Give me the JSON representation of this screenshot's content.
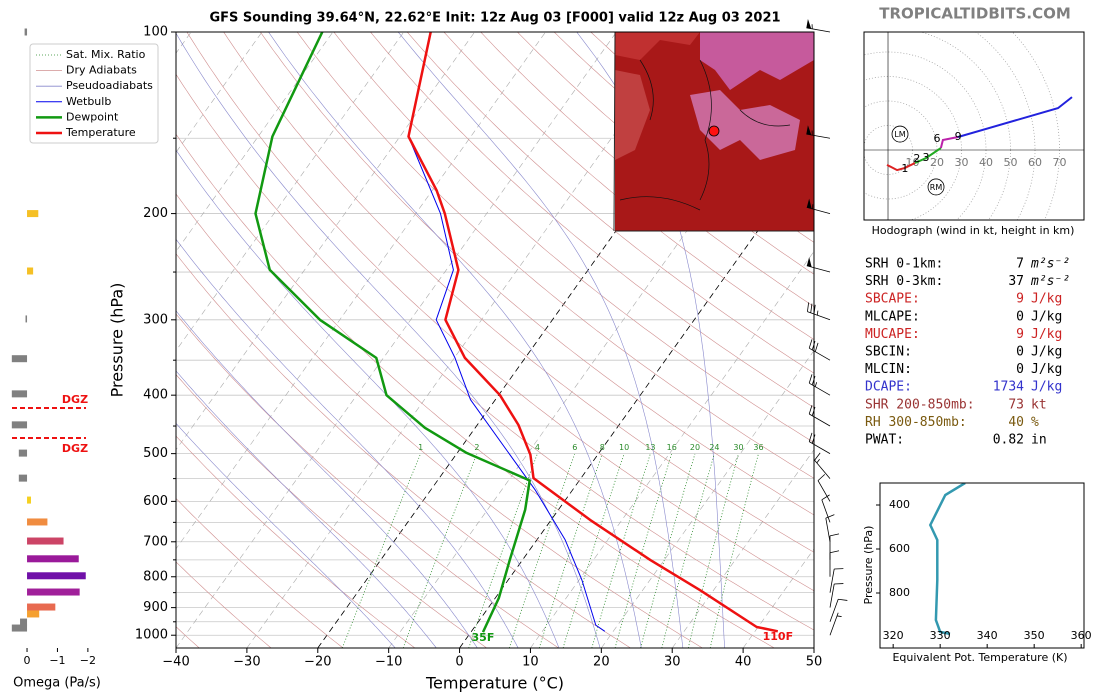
{
  "header": {
    "watermark": "TROPICALTIDBITS.COM"
  },
  "stats": {
    "rows": [
      {
        "label": "SRH 0-1km:",
        "value": "7",
        "unit": "m²s⁻²",
        "color": "#000000"
      },
      {
        "label": "SRH 0-3km:",
        "value": "37",
        "unit": "m²s⁻²",
        "color": "#000000"
      },
      {
        "label": "SBCAPE:",
        "value": "9",
        "unit": "J/kg",
        "color": "#cc2222"
      },
      {
        "label": "MLCAPE:",
        "value": "0",
        "unit": "J/kg",
        "color": "#000000"
      },
      {
        "label": "MUCAPE:",
        "value": "9",
        "unit": "J/kg",
        "color": "#cc2222"
      },
      {
        "label": "SBCIN:",
        "value": "0",
        "unit": "J/kg",
        "color": "#000000"
      },
      {
        "label": "MLCIN:",
        "value": "0",
        "unit": "J/kg",
        "color": "#000000"
      },
      {
        "label": "DCAPE:",
        "value": "1734",
        "unit": "J/kg",
        "color": "#3333cc"
      },
      {
        "label": "SHR 200-850mb:",
        "value": "73",
        "unit": "kt",
        "color": "#993333"
      },
      {
        "label": "RH 300-850mb:",
        "value": "40",
        "unit": "%",
        "color": "#7a5a10"
      },
      {
        "label": "PWAT:",
        "value": "0.82",
        "unit": "in",
        "color": "#000000"
      }
    ]
  },
  "chart_data": [
    {
      "type": "skewt",
      "title": "GFS Sounding 39.64°N, 22.62°E Init: 12z Aug 03 [F000] valid 12z Aug 03 2021",
      "xlabel": "Temperature (°C)",
      "ylabel": "Pressure (hPa)",
      "xlim": [
        -40,
        50
      ],
      "ylim": [
        1050,
        100
      ],
      "log_y": true,
      "grid": true,
      "legend": "upper left",
      "xticks": [
        {
          "value": -40,
          "label": "−40"
        },
        {
          "value": -30,
          "label": "−30"
        },
        {
          "value": -20,
          "label": "−20"
        },
        {
          "value": -10,
          "label": "−10"
        },
        0,
        10,
        20,
        30,
        40,
        50
      ],
      "yticks": [
        100,
        200,
        300,
        400,
        500,
        600,
        700,
        800,
        900,
        1000
      ],
      "yticks_minor": [
        150,
        250,
        350,
        450,
        550,
        650,
        750,
        850,
        950
      ],
      "highlight_isotherms": [
        0,
        -20
      ],
      "reference_lines": [
        {
          "name": "Sat. Mix. Ratio",
          "color": "#2a8a2a",
          "line_width": 0.8,
          "dash": "1 2",
          "top_pressure": 500,
          "mixing_ratios": [
            1,
            2,
            4,
            6,
            8,
            10,
            13,
            16,
            20,
            24,
            30,
            36
          ]
        },
        {
          "name": "Dry Adiabats",
          "color": "#d09090",
          "line_width": 0.6,
          "theta": [
            -40,
            -30,
            -20,
            -10,
            0,
            10,
            20,
            30,
            40,
            50,
            60,
            70,
            80,
            90,
            100,
            110,
            120,
            130,
            140,
            150,
            160,
            170,
            180,
            190,
            200
          ]
        },
        {
          "name": "Pseudoadiabats",
          "color": "#8888cc",
          "line_width": 0.6,
          "t1000": [
            -12,
            -6,
            0,
            6,
            12,
            18,
            24,
            30,
            36
          ]
        }
      ],
      "series": [
        {
          "name": "Wetbulb",
          "color": "#0000ee",
          "line_width": 1,
          "pressure": [
            100,
            149,
            200,
            248,
            300,
            347,
            407,
            502,
            574,
            695,
            810,
            962,
            985
          ],
          "values": [
            -66.2,
            -58.8,
            -46.5,
            -39.0,
            -36.4,
            -29.9,
            -23.5,
            -12.4,
            -5.3,
            4.0,
            10.4,
            16.9,
            18.8
          ]
        },
        {
          "name": "Dewpoint",
          "color": "#119911",
          "line_width": 2.5,
          "pressure": [
            100,
            149,
            200,
            248,
            300,
            347,
            400,
            453,
            498,
            554,
            619,
            750,
            868,
            988
          ],
          "values": [
            -81.5,
            -78,
            -72.6,
            -64.9,
            -52.8,
            -41,
            -35.8,
            -27.1,
            -18.8,
            -7,
            -4.7,
            -1.8,
            0.5,
            1.7
          ]
        },
        {
          "name": "Temperature",
          "color": "#ee1111",
          "line_width": 2.5,
          "pressure": [
            100,
            149,
            183,
            200,
            248,
            300,
            347,
            400,
            448,
            502,
            549,
            644,
            750,
            842,
            969,
            985
          ],
          "values": [
            -66.2,
            -58.8,
            -49.4,
            -45.9,
            -38.3,
            -35.1,
            -28.5,
            -19.8,
            -14.2,
            -9.5,
            -6.7,
            5.5,
            18,
            28.1,
            39.8,
            43.2
          ]
        }
      ],
      "annotations": [
        {
          "text": "35F",
          "color": "#119911",
          "temperature": 2.3,
          "pressure": 1011
        },
        {
          "text": "110F",
          "color": "#ee1111",
          "temperature": 43.8,
          "pressure": 1007
        }
      ],
      "barbs": {
        "pressure": [
          100,
          150,
          200,
          250,
          300,
          350,
          400,
          450,
          500,
          550,
          600,
          650,
          700,
          750,
          800,
          850,
          900,
          950,
          1000
        ],
        "speed": [
          55,
          55,
          55,
          50,
          35,
          30,
          25,
          20,
          20,
          15,
          10,
          10,
          10,
          10,
          10,
          10,
          10,
          10,
          5
        ],
        "direction": [
          280,
          280,
          285,
          285,
          290,
          300,
          300,
          300,
          300,
          320,
          330,
          340,
          350,
          0,
          0,
          10,
          10,
          20,
          20
        ]
      }
    },
    {
      "type": "omega",
      "xlabel": "Omega (Pa/s)",
      "xlim": [
        0.56,
        -2.3
      ],
      "xticks": [
        0,
        {
          "value": -1,
          "label": "−1"
        },
        {
          "value": -2,
          "label": "−2"
        }
      ],
      "pressure": [
        100,
        200,
        249,
        299,
        348,
        398,
        448,
        499,
        549,
        597,
        649,
        698,
        747,
        797,
        848,
        898,
        922,
        951,
        973
      ],
      "values": [
        0.08,
        -0.37,
        -0.2,
        0.05,
        0.5,
        0.5,
        0.5,
        0.27,
        0.27,
        -0.13,
        -0.67,
        -1.2,
        -1.7,
        -1.93,
        -1.73,
        -0.93,
        -0.4,
        0.23,
        0.5
      ],
      "colors": [
        "#808080",
        "#f5c025",
        "#f5c025",
        "#808080",
        "#808080",
        "#808080",
        "#808080",
        "#808080",
        "#808080",
        "#f5d020",
        "#f08c40",
        "#cc4466",
        "#9a1a9a",
        "#7010a8",
        "#a0209a",
        "#e86a50",
        "#f5a030",
        "#808080",
        "#808080"
      ],
      "dgz": {
        "label": "DGZ",
        "color": "#ee1111",
        "pressure": [
          420,
          471
        ]
      }
    },
    {
      "type": "hodograph",
      "caption": "Hodograph (wind in kt, height in km)",
      "xlim": [
        -9.8,
        80
      ],
      "ylim": [
        -28.6,
        48.2
      ],
      "rings": [
        10,
        20,
        30,
        40,
        50,
        60,
        70
      ],
      "series": [
        {
          "color": "#dd2222",
          "u": [
            -0.4,
            3.7,
            6.9,
            11
          ],
          "v": [
            -6.1,
            -8.2,
            -7.3,
            -5.3
          ]
        },
        {
          "color": "#22aa22",
          "u": [
            11,
            15.5,
            21.6
          ],
          "v": [
            -5.3,
            -3.3,
            0.8
          ]
        },
        {
          "color": "#bb22aa",
          "u": [
            21.6,
            22.4,
            28.6
          ],
          "v": [
            0.8,
            4.1,
            5.3
          ]
        },
        {
          "color": "#2222dd",
          "u": [
            28.6,
            69.4,
            75.1
          ],
          "v": [
            5.3,
            17.1,
            21.6
          ]
        }
      ],
      "height_labels": [
        {
          "text": "1",
          "u": 6.9,
          "v": -7.8
        },
        {
          "text": "2",
          "u": 11.8,
          "v": -3.7
        },
        {
          "text": "3",
          "u": 15.5,
          "v": -3.3
        },
        {
          "text": "6",
          "u": 20,
          "v": 4.5
        },
        {
          "text": "9",
          "u": 28.6,
          "v": 5.3
        }
      ],
      "markers": [
        {
          "label": "LM",
          "u": 4.9,
          "v": 6.5
        },
        {
          "label": "RM",
          "u": 19.6,
          "v": -15.1
        }
      ]
    },
    {
      "type": "line",
      "xlabel": "Equivalent Pot. Temperature (K)",
      "ylabel": "Pressure (hPa)",
      "xlim": [
        317.2,
        360.6
      ],
      "ylim": [
        300,
        1050
      ],
      "xticks": [
        320,
        330,
        340,
        350,
        360
      ],
      "yticks": [
        400,
        600,
        800
      ],
      "color": "#3399b0",
      "pressure": [
        300,
        354.5,
        491,
        559,
        741,
        923,
        977,
        986
      ],
      "values": [
        335.3,
        331.1,
        327.9,
        329.4,
        329.4,
        329.1,
        330.0,
        332.1
      ]
    }
  ]
}
